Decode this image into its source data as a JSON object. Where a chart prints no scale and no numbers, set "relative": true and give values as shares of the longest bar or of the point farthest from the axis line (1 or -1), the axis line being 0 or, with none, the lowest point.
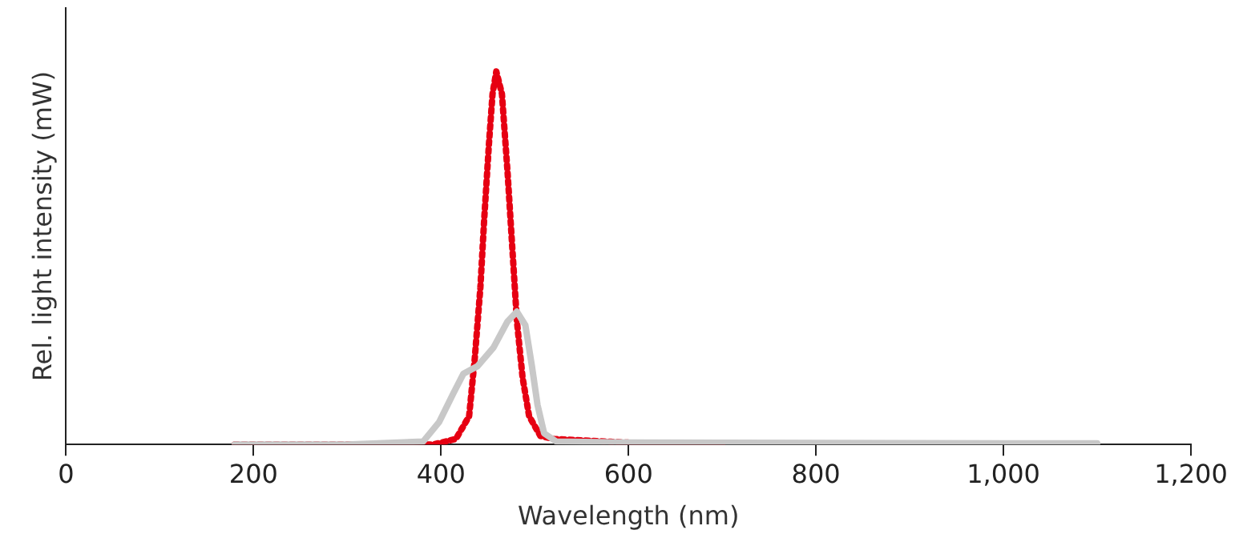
{
  "chart_data": {
    "type": "line",
    "xlabel": "Wavelength (nm)",
    "ylabel": "Rel. light intensity (mW)",
    "relative": true,
    "xlim": [
      0,
      1200
    ],
    "xticks": [
      0,
      200,
      400,
      600,
      800,
      {
        "value": 1000,
        "label": "1,000"
      },
      {
        "value": 1200,
        "label": "1,200"
      }
    ],
    "grid": false,
    "legend": false,
    "series": [
      {
        "color": "#c8c8c8",
        "line_style": "solid",
        "x": [
          180,
          300,
          381,
          398,
          413,
          424,
          439,
          456,
          471,
          481,
          490,
          497,
          503,
          510,
          523,
          600,
          800,
          1000,
          1100
        ],
        "values": [
          0,
          0,
          0.008,
          0.06,
          0.136,
          0.19,
          0.21,
          0.26,
          0.33,
          0.356,
          0.32,
          0.21,
          0.106,
          0.03,
          0.008,
          0.005,
          0.004,
          0.003,
          0.003
        ]
      },
      {
        "color": "#e60012",
        "line_style": "dotted",
        "x": [
          180,
          300,
          392,
          416,
          430,
          436,
          442,
          446,
          451,
          455,
          459,
          465,
          471,
          476,
          481,
          487,
          494,
          506,
          520,
          560,
          600,
          700
        ],
        "values": [
          0,
          0,
          0,
          0.015,
          0.076,
          0.23,
          0.42,
          0.6,
          0.8,
          0.94,
          1,
          0.94,
          0.73,
          0.53,
          0.33,
          0.18,
          0.076,
          0.023,
          0.015,
          0.01,
          0.005,
          0
        ]
      }
    ]
  }
}
